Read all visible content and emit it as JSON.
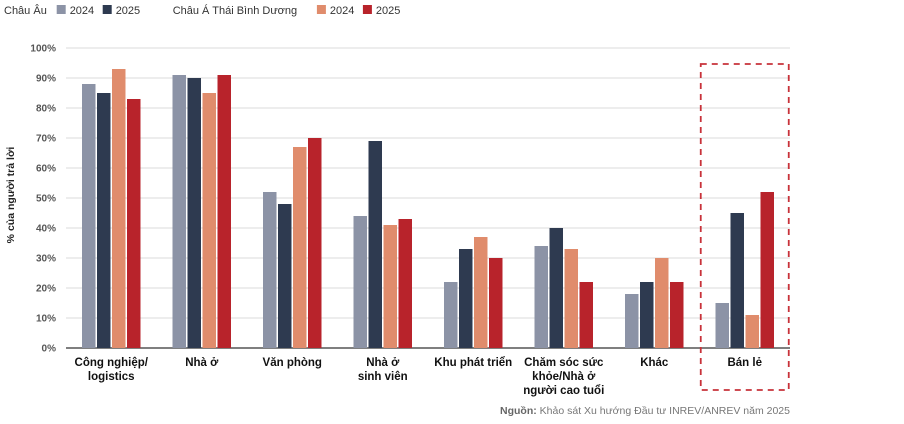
{
  "chart_data": {
    "type": "bar",
    "ylabel": "% của người trả lời",
    "ylim": [
      0,
      100
    ],
    "ytick_labels": [
      "0%",
      "10%",
      "20%",
      "30%",
      "40%",
      "50%",
      "60%",
      "70%",
      "80%",
      "90%",
      "100%"
    ],
    "grid": true,
    "legend_position": "top-left",
    "legend_groups": [
      {
        "label": "Châu Âu",
        "entries": [
          "2024",
          "2025"
        ]
      },
      {
        "label": "Châu Á Thái Bình Dương",
        "entries": [
          "2024",
          "2025"
        ]
      }
    ],
    "categories": [
      [
        "Công nghiệp/",
        "logistics"
      ],
      [
        "Nhà ở"
      ],
      [
        "Văn phòng"
      ],
      [
        "Nhà ở",
        "sinh viên"
      ],
      [
        "Khu phát triển"
      ],
      [
        "Chăm sóc sức",
        "khỏe/Nhà ở",
        "người cao tuổi"
      ],
      [
        "Khác"
      ],
      [
        "Bán lẻ"
      ]
    ],
    "series": [
      {
        "name": "2024",
        "group": "Châu Âu",
        "color": "#8c93a6",
        "values": [
          88,
          91,
          52,
          44,
          22,
          34,
          18,
          15
        ]
      },
      {
        "name": "2025",
        "group": "Châu Âu",
        "color": "#2e3a50",
        "values": [
          85,
          90,
          48,
          69,
          33,
          40,
          22,
          45
        ]
      },
      {
        "name": "2024",
        "group": "Châu Á Thái Bình Dương",
        "color": "#e08c6c",
        "values": [
          93,
          85,
          67,
          41,
          37,
          33,
          30,
          11
        ]
      },
      {
        "name": "2025",
        "group": "Châu Á Thái Bình Dương",
        "color": "#b8232b",
        "values": [
          83,
          91,
          70,
          43,
          30,
          22,
          22,
          52
        ]
      }
    ],
    "highlighted_category": "Bán lẻ",
    "highlight_color": "#c8323a"
  },
  "source": {
    "label": "Nguồn:",
    "text": " Khảo sát Xu hướng Đầu tư INREV/ANREV năm 2025"
  }
}
